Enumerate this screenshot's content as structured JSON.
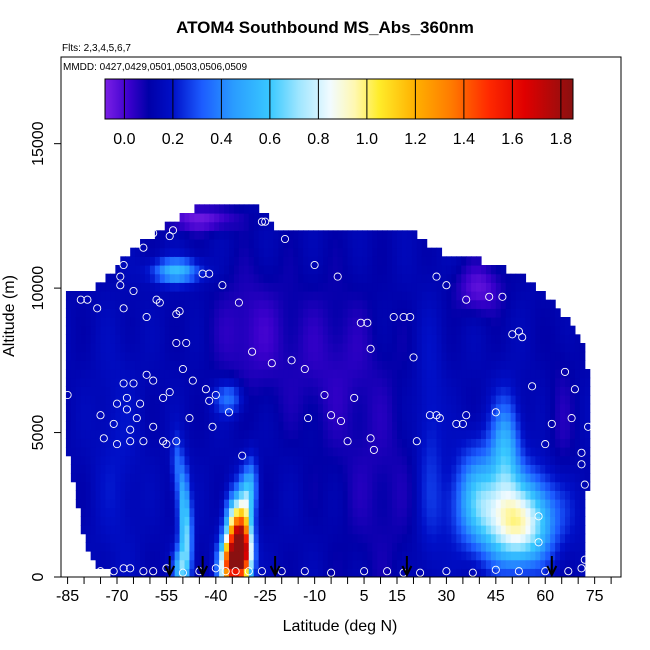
{
  "chart_data": {
    "type": "heatmap",
    "title": "ATOM4 Southbound MS_Abs_360nm",
    "annotations": {
      "flights": "Flts: 2,3,4,5,6,7",
      "dates": "MMDD: 0427,0429,0501,0503,0506,0509"
    },
    "xlabel": "Latitude (deg N)",
    "ylabel": "Altitude (m)",
    "xlim": [
      -87,
      83
    ],
    "ylim": [
      0,
      18000
    ],
    "x_ticks": [
      -85,
      -70,
      -55,
      -40,
      -25,
      -10,
      5,
      15,
      30,
      45,
      60,
      75
    ],
    "x_tick_labels": [
      "-85",
      "-70",
      "-55",
      "-40",
      "-25",
      "-10",
      "5",
      "15",
      "30",
      "45",
      "60",
      "75"
    ],
    "x_minor_step": 5,
    "y_ticks": [
      0,
      5000,
      10000,
      15000
    ],
    "y_tick_labels": [
      "0",
      "5000",
      "10000",
      "15000"
    ],
    "colorbar": {
      "range": [
        -0.08,
        1.85
      ],
      "ticks": [
        0.0,
        0.2,
        0.4,
        0.6,
        0.8,
        1.0,
        1.2,
        1.4,
        1.6,
        1.8
      ],
      "tick_labels": [
        "0.0",
        "0.2",
        "0.4",
        "0.6",
        "0.8",
        "1.0",
        "1.2",
        "1.4",
        "1.6",
        "1.8"
      ],
      "stops": [
        [
          -0.08,
          "#7b1fe6"
        ],
        [
          0.02,
          "#3a00cc"
        ],
        [
          0.1,
          "#0000a8"
        ],
        [
          0.2,
          "#0010c8"
        ],
        [
          0.32,
          "#1c5cff"
        ],
        [
          0.45,
          "#2a9cff"
        ],
        [
          0.6,
          "#38c8ff"
        ],
        [
          0.72,
          "#9fe6ff"
        ],
        [
          0.85,
          "#f2fbff"
        ],
        [
          0.95,
          "#fff8b0"
        ],
        [
          1.05,
          "#ffec2a"
        ],
        [
          1.2,
          "#ffb000"
        ],
        [
          1.35,
          "#ff7a00"
        ],
        [
          1.5,
          "#ff2a00"
        ],
        [
          1.65,
          "#e00000"
        ],
        [
          1.85,
          "#8a1010"
        ]
      ]
    },
    "background_value": 0.13,
    "coverage": [
      [
        -86,
        6500
      ],
      [
        -85,
        9800
      ],
      [
        -83,
        9800
      ],
      [
        -79,
        9900
      ],
      [
        -75,
        10200
      ],
      [
        -72,
        10500
      ],
      [
        -68,
        11000
      ],
      [
        -62,
        11600
      ],
      [
        -55,
        12200
      ],
      [
        -50,
        12500
      ],
      [
        -45,
        12800
      ],
      [
        -30,
        12800
      ],
      [
        -24,
        12700
      ],
      [
        -22,
        12000
      ],
      [
        -10,
        12000
      ],
      [
        0,
        12000
      ],
      [
        20,
        12000
      ],
      [
        25,
        11500
      ],
      [
        30,
        11200
      ],
      [
        40,
        11000
      ],
      [
        50,
        10600
      ],
      [
        56,
        10200
      ],
      [
        60,
        9800
      ],
      [
        64,
        9300
      ],
      [
        68,
        8700
      ],
      [
        72,
        8000
      ],
      [
        73,
        7000
      ],
      [
        73,
        4000
      ],
      [
        72,
        0
      ],
      [
        -70,
        0
      ],
      [
        -78,
        500
      ],
      [
        -80,
        1500
      ],
      [
        -83,
        3000
      ],
      [
        -86,
        5000
      ]
    ],
    "features": [
      {
        "lat": -32,
        "alt": 800,
        "sx": 2.0,
        "sy": 700,
        "value": 1.75
      },
      {
        "lat": -34,
        "alt": 1600,
        "sx": 2.0,
        "sy": 800,
        "value": 1.05
      },
      {
        "lat": -31,
        "alt": 2400,
        "sx": 1.5,
        "sy": 800,
        "value": 0.6
      },
      {
        "lat": -29,
        "alt": 3200,
        "sx": 1.3,
        "sy": 700,
        "value": 0.38
      },
      {
        "lat": -36,
        "alt": 400,
        "sx": 2.0,
        "sy": 600,
        "value": 1.3
      },
      {
        "lat": -49,
        "alt": 1200,
        "sx": 1.3,
        "sy": 1000,
        "value": 0.62
      },
      {
        "lat": -50,
        "alt": 2800,
        "sx": 1.2,
        "sy": 900,
        "value": 0.45
      },
      {
        "lat": -52,
        "alt": 4000,
        "sx": 1.1,
        "sy": 700,
        "value": 0.32
      },
      {
        "lat": -51,
        "alt": 300,
        "sx": 1.5,
        "sy": 500,
        "value": 0.5
      },
      {
        "lat": 50,
        "alt": 2300,
        "sx": 10,
        "sy": 1000,
        "value": 0.6
      },
      {
        "lat": 52,
        "alt": 1500,
        "sx": 6,
        "sy": 900,
        "value": 0.55
      },
      {
        "lat": 48,
        "alt": 4500,
        "sx": 3,
        "sy": 1200,
        "value": 0.5
      },
      {
        "lat": 40,
        "alt": 3000,
        "sx": 5,
        "sy": 1200,
        "value": 0.4
      },
      {
        "lat": -52,
        "alt": 10600,
        "sx": 5,
        "sy": 300,
        "value": 0.55
      },
      {
        "lat": -36,
        "alt": 6200,
        "sx": 3,
        "sy": 400,
        "value": 0.38
      },
      {
        "lat": -45,
        "alt": 12400,
        "sx": 8,
        "sy": 300,
        "value": -0.05
      },
      {
        "lat": 40,
        "alt": 10000,
        "sx": 5,
        "sy": 600,
        "value": -0.03
      },
      {
        "lat": -5,
        "alt": 7500,
        "sx": 12,
        "sy": 2000,
        "value": 0.05
      },
      {
        "lat": -30,
        "alt": 8500,
        "sx": 8,
        "sy": 1500,
        "value": 0.03
      },
      {
        "lat": 25,
        "alt": 4200,
        "sx": 3,
        "sy": 3000,
        "value": 0.25
      },
      {
        "lat": 65,
        "alt": 5000,
        "sx": 3,
        "sy": 2500,
        "value": 0.07
      },
      {
        "lat": -70,
        "alt": 4000,
        "sx": 5,
        "sy": 3000,
        "value": 0.2
      },
      {
        "lat": 10,
        "alt": 3000,
        "sx": 10,
        "sy": 2500,
        "value": 0.07
      }
    ],
    "profile_arrows_lat": [
      -54,
      -44,
      -22,
      18,
      62
    ],
    "sample_points": [
      [
        -85,
        6300
      ],
      [
        -81,
        9600
      ],
      [
        -79,
        9600
      ],
      [
        -76,
        9300
      ],
      [
        -75,
        5600
      ],
      [
        -74,
        4800
      ],
      [
        -71,
        5300
      ],
      [
        -70,
        4600
      ],
      [
        -70,
        6000
      ],
      [
        -69,
        10400
      ],
      [
        -69,
        10100
      ],
      [
        -68,
        10800
      ],
      [
        -68,
        9300
      ],
      [
        -68,
        6700
      ],
      [
        -67,
        6200
      ],
      [
        -67,
        5800
      ],
      [
        -66,
        5100
      ],
      [
        -66,
        4700
      ],
      [
        -65,
        9900
      ],
      [
        -65,
        6700
      ],
      [
        -64,
        5500
      ],
      [
        -63,
        6000
      ],
      [
        -62,
        11400
      ],
      [
        -62,
        4700
      ],
      [
        -61,
        9000
      ],
      [
        -61,
        7000
      ],
      [
        -59,
        11900
      ],
      [
        -59,
        6800
      ],
      [
        -59,
        5200
      ],
      [
        -58,
        9600
      ],
      [
        -57,
        9500
      ],
      [
        -56,
        6200
      ],
      [
        -56,
        4700
      ],
      [
        -55,
        4600
      ],
      [
        -54,
        11800
      ],
      [
        -54,
        6400
      ],
      [
        -53,
        12000
      ],
      [
        -52,
        9100
      ],
      [
        -52,
        8100
      ],
      [
        -52,
        4700
      ],
      [
        -51,
        9200
      ],
      [
        -50,
        7200
      ],
      [
        -49,
        8100
      ],
      [
        -48,
        5500
      ],
      [
        -47,
        6800
      ],
      [
        -44,
        10500
      ],
      [
        -43,
        6500
      ],
      [
        -42,
        10500
      ],
      [
        -42,
        6100
      ],
      [
        -41,
        5200
      ],
      [
        -40,
        6300
      ],
      [
        -38,
        10100
      ],
      [
        -36,
        5700
      ],
      [
        -33,
        9500
      ],
      [
        -32,
        4200
      ],
      [
        -29,
        7800
      ],
      [
        -26,
        12300
      ],
      [
        -25,
        12300
      ],
      [
        -23,
        7400
      ],
      [
        -19,
        11700
      ],
      [
        -17,
        7500
      ],
      [
        -13,
        7200
      ],
      [
        -12,
        5500
      ],
      [
        -10,
        10800
      ],
      [
        -7,
        6300
      ],
      [
        -5,
        5600
      ],
      [
        -3,
        10400
      ],
      [
        -2,
        5400
      ],
      [
        0,
        4700
      ],
      [
        2,
        6200
      ],
      [
        4,
        8800
      ],
      [
        6,
        8800
      ],
      [
        7,
        7900
      ],
      [
        7,
        4800
      ],
      [
        8,
        4400
      ],
      [
        14,
        9000
      ],
      [
        17,
        9000
      ],
      [
        19,
        9000
      ],
      [
        20,
        7600
      ],
      [
        21,
        4700
      ],
      [
        25,
        5600
      ],
      [
        27,
        5600
      ],
      [
        27,
        10400
      ],
      [
        28,
        5500
      ],
      [
        30,
        10100
      ],
      [
        33,
        5300
      ],
      [
        35,
        5300
      ],
      [
        36,
        9600
      ],
      [
        36,
        5600
      ],
      [
        38,
        11700
      ],
      [
        43,
        9700
      ],
      [
        45,
        5700
      ],
      [
        47,
        9700
      ],
      [
        50,
        8400
      ],
      [
        52,
        8500
      ],
      [
        53,
        8300
      ],
      [
        55,
        11400
      ],
      [
        56,
        6600
      ],
      [
        58,
        2100
      ],
      [
        58,
        1200
      ],
      [
        60,
        4600
      ],
      [
        62,
        5300
      ],
      [
        66,
        7100
      ],
      [
        68,
        5500
      ],
      [
        69,
        6500
      ],
      [
        71,
        4300
      ],
      [
        71,
        3900
      ],
      [
        72,
        3200
      ],
      [
        73,
        5200
      ],
      [
        -81,
        200
      ],
      [
        -78,
        200
      ],
      [
        -75,
        200
      ],
      [
        -71,
        200
      ],
      [
        -68,
        300
      ],
      [
        -66,
        300
      ],
      [
        -62,
        200
      ],
      [
        -59,
        200
      ],
      [
        -55,
        300
      ],
      [
        -50,
        150
      ],
      [
        -45,
        200
      ],
      [
        -40,
        300
      ],
      [
        -37,
        200
      ],
      [
        -34,
        200
      ],
      [
        -30,
        200
      ],
      [
        -26,
        200
      ],
      [
        -20,
        200
      ],
      [
        -13,
        200
      ],
      [
        -5,
        150
      ],
      [
        5,
        200
      ],
      [
        12,
        200
      ],
      [
        17,
        150
      ],
      [
        22,
        150
      ],
      [
        30,
        200
      ],
      [
        38,
        150
      ],
      [
        45,
        250
      ],
      [
        52,
        200
      ],
      [
        60,
        200
      ],
      [
        67,
        200
      ],
      [
        71,
        300
      ],
      [
        72,
        600
      ]
    ]
  }
}
